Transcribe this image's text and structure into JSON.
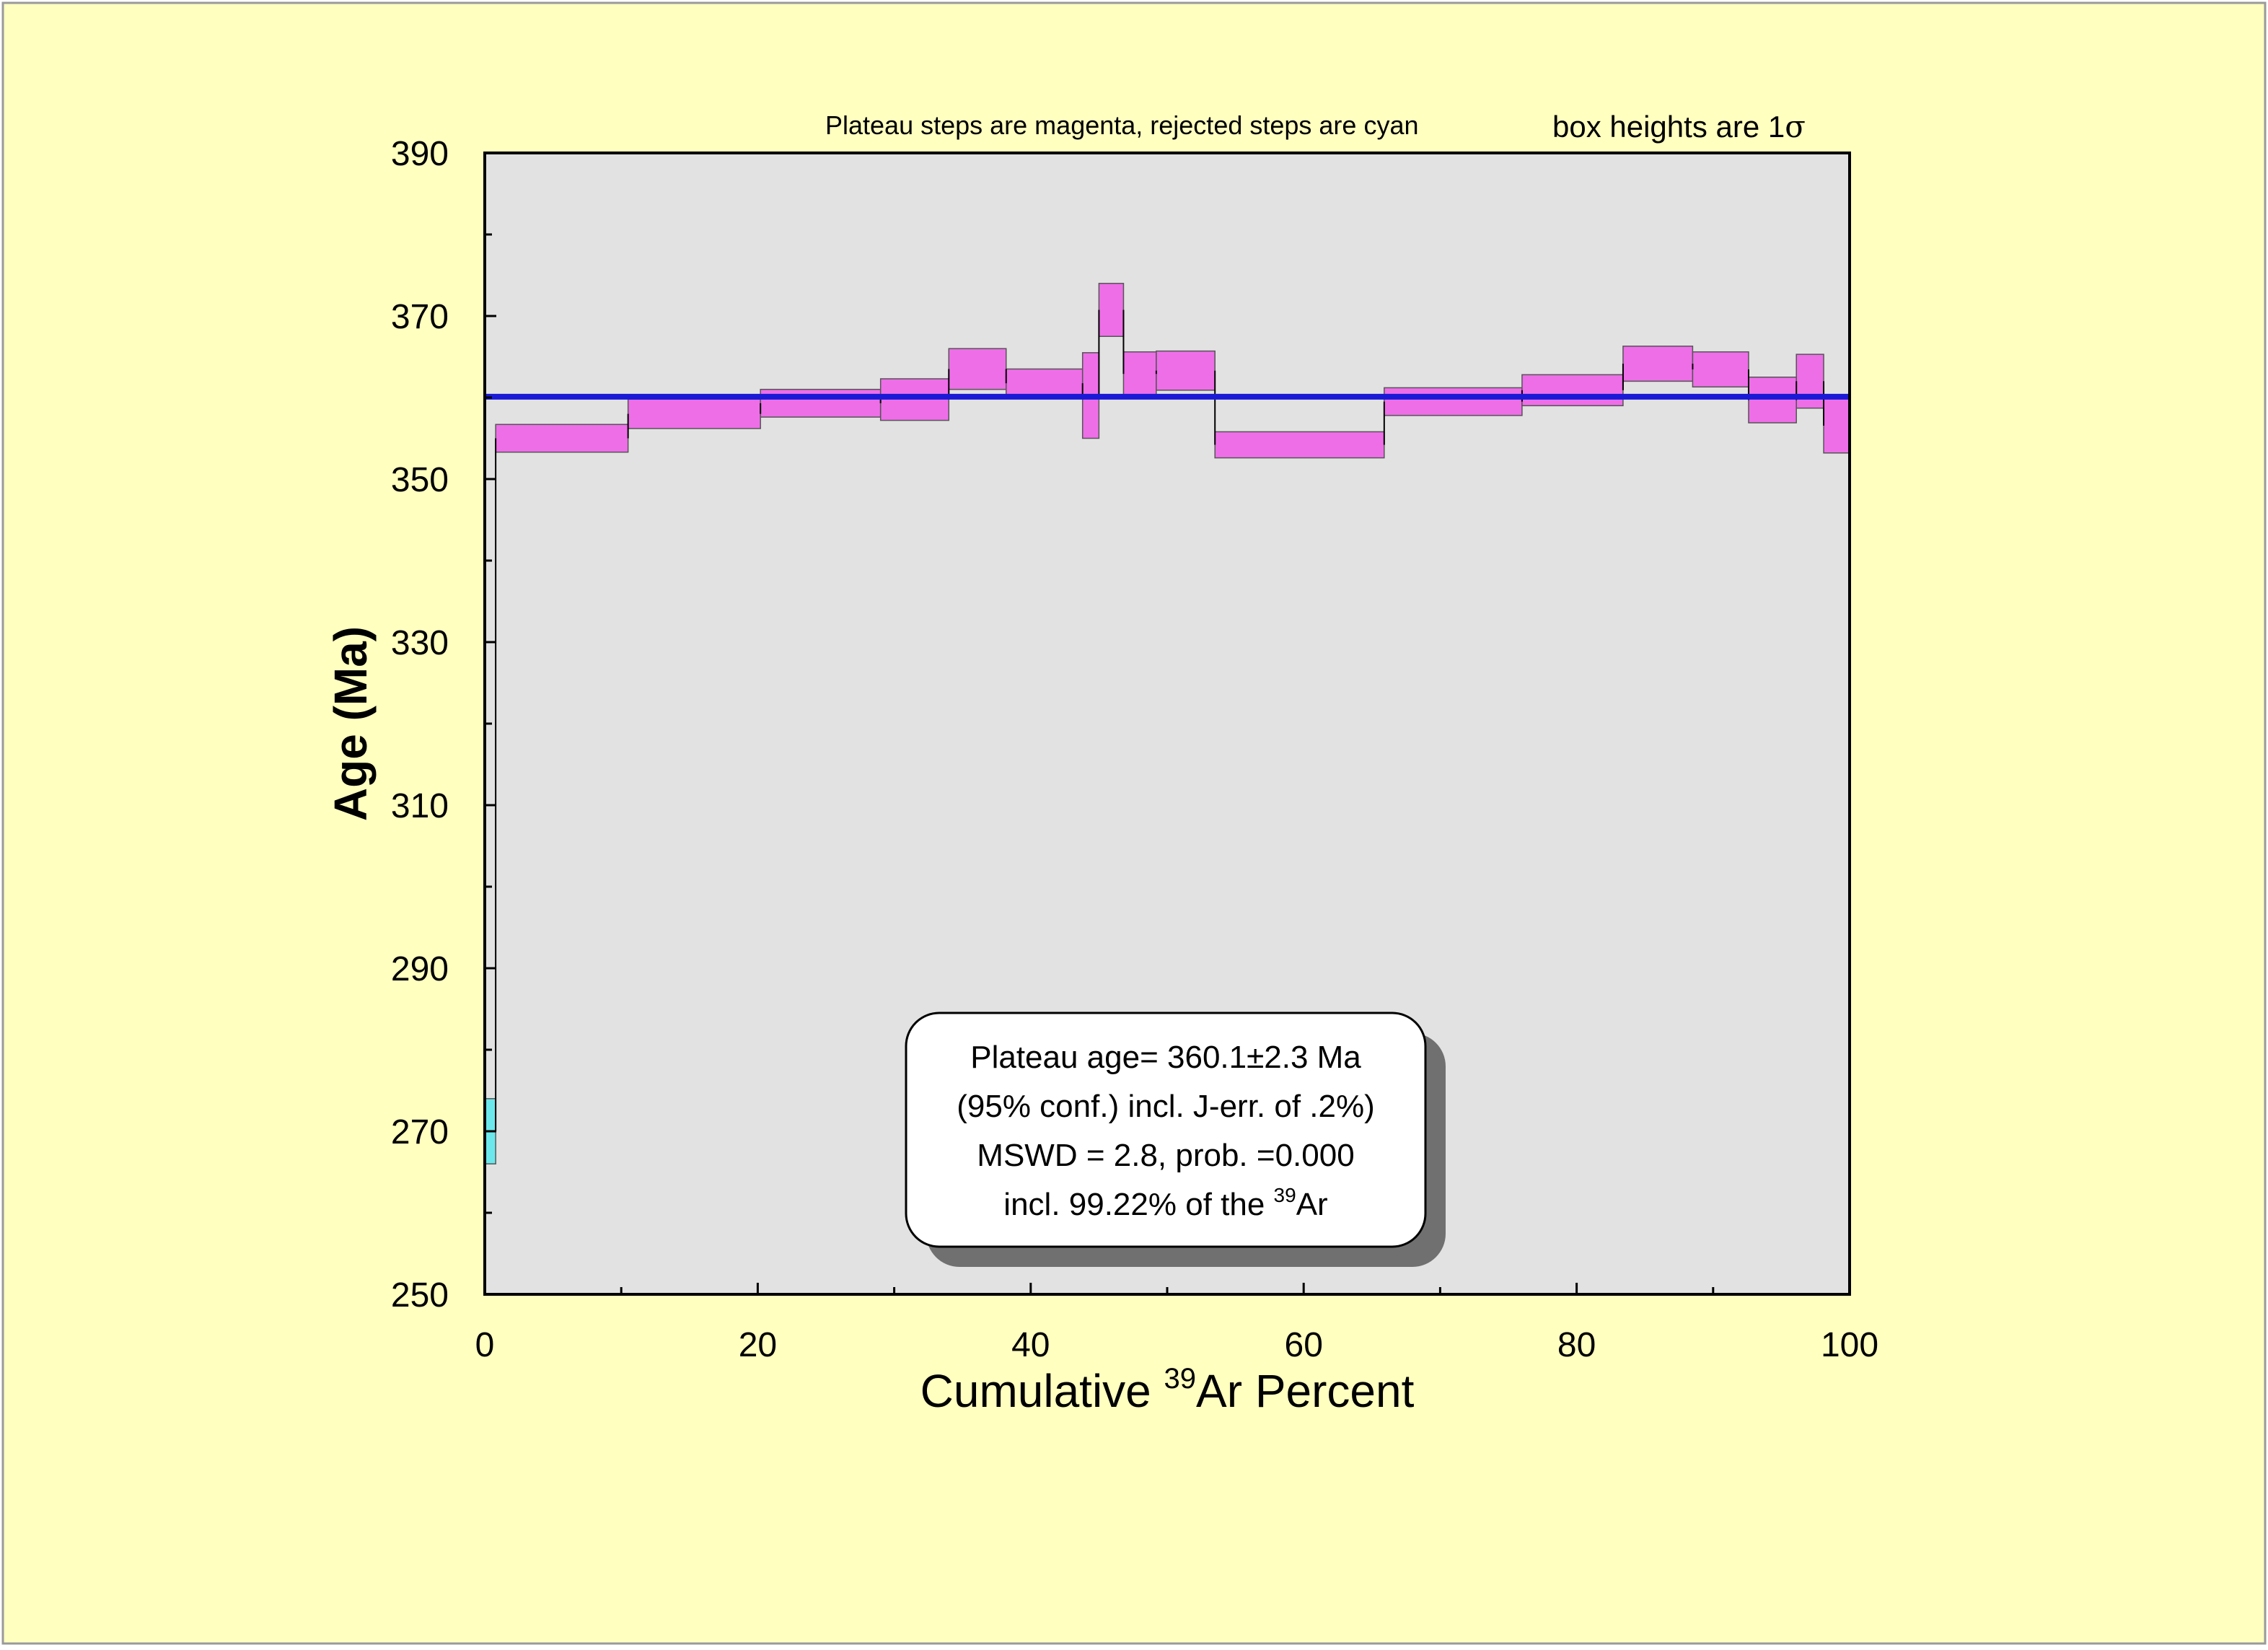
{
  "chart_data": {
    "type": "plateau-step",
    "xlabel_main": "Cumulative ",
    "xlabel_sup": "39",
    "xlabel_rest": "Ar Percent",
    "ylabel": "Age (Ma)",
    "xlim": [
      0,
      100
    ],
    "ylim": [
      250,
      390
    ],
    "x_ticks": [
      0,
      20,
      40,
      60,
      80,
      100
    ],
    "x_tick_labels": [
      "0",
      "20",
      "40",
      "60",
      "80",
      "100"
    ],
    "x_minor_ticks": [
      10,
      30,
      50,
      70,
      90
    ],
    "y_ticks": [
      250,
      270,
      290,
      310,
      330,
      350,
      370,
      390
    ],
    "y_tick_labels": [
      "250",
      "270",
      "290",
      "310",
      "330",
      "350",
      "370",
      "390"
    ],
    "y_minor_ticks": [
      260,
      280,
      300,
      320,
      340,
      360,
      380
    ],
    "note_steps": "Plateau steps are magenta, rejected steps are cyan",
    "note_box_heights": "box heights are 1",
    "note_sigma": "σ",
    "plateau_age": 360.1,
    "steps": [
      {
        "x0": 0.0,
        "x1": 0.8,
        "ylow": 266.0,
        "yhigh": 274.0,
        "status": "rejected"
      },
      {
        "x0": 0.8,
        "x1": 10.5,
        "ylow": 353.3,
        "yhigh": 356.7,
        "status": "plateau"
      },
      {
        "x0": 10.5,
        "x1": 20.2,
        "ylow": 356.2,
        "yhigh": 359.8,
        "status": "plateau"
      },
      {
        "x0": 20.2,
        "x1": 29.0,
        "ylow": 357.6,
        "yhigh": 361.0,
        "status": "plateau"
      },
      {
        "x0": 29.0,
        "x1": 34.0,
        "ylow": 357.2,
        "yhigh": 362.3,
        "status": "plateau"
      },
      {
        "x0": 34.0,
        "x1": 38.2,
        "ylow": 361.0,
        "yhigh": 366.0,
        "status": "plateau"
      },
      {
        "x0": 38.2,
        "x1": 43.8,
        "ylow": 360.0,
        "yhigh": 363.5,
        "status": "plateau"
      },
      {
        "x0": 43.8,
        "x1": 45.0,
        "ylow": 355.0,
        "yhigh": 365.5,
        "status": "plateau"
      },
      {
        "x0": 45.0,
        "x1": 46.8,
        "ylow": 367.5,
        "yhigh": 374.0,
        "status": "plateau"
      },
      {
        "x0": 46.8,
        "x1": 49.2,
        "ylow": 360.2,
        "yhigh": 365.6,
        "status": "plateau"
      },
      {
        "x0": 49.2,
        "x1": 53.5,
        "ylow": 360.9,
        "yhigh": 365.7,
        "status": "plateau"
      },
      {
        "x0": 53.5,
        "x1": 65.9,
        "ylow": 352.6,
        "yhigh": 355.8,
        "status": "plateau"
      },
      {
        "x0": 65.9,
        "x1": 76.0,
        "ylow": 357.8,
        "yhigh": 361.2,
        "status": "plateau"
      },
      {
        "x0": 76.0,
        "x1": 83.4,
        "ylow": 359.0,
        "yhigh": 362.8,
        "status": "plateau"
      },
      {
        "x0": 83.4,
        "x1": 88.5,
        "ylow": 362.0,
        "yhigh": 366.3,
        "status": "plateau"
      },
      {
        "x0": 88.5,
        "x1": 92.6,
        "ylow": 361.3,
        "yhigh": 365.6,
        "status": "plateau"
      },
      {
        "x0": 92.6,
        "x1": 96.1,
        "ylow": 356.9,
        "yhigh": 362.5,
        "status": "plateau"
      },
      {
        "x0": 96.1,
        "x1": 98.1,
        "ylow": 358.7,
        "yhigh": 365.3,
        "status": "plateau"
      },
      {
        "x0": 98.1,
        "x1": 100.0,
        "ylow": 353.2,
        "yhigh": 359.9,
        "status": "plateau"
      }
    ],
    "colors": {
      "page_background": "#ffffc0",
      "plot_background": "#e2e2e2",
      "plateau_fill": "#ee6ee8",
      "rejected_fill": "#6ce8ec",
      "plateau_line": "#1a1ad6",
      "shadow": "#707070"
    }
  },
  "result_box": {
    "line1": "Plateau age= 360.1±2.3 Ma",
    "line2": "(95% conf.) incl. J-err. of .2%)",
    "line3": "MSWD = 2.8, prob. =0.000",
    "line4_pre": "incl. 99.22% of the ",
    "line4_sup": "39",
    "line4_post": "Ar"
  }
}
